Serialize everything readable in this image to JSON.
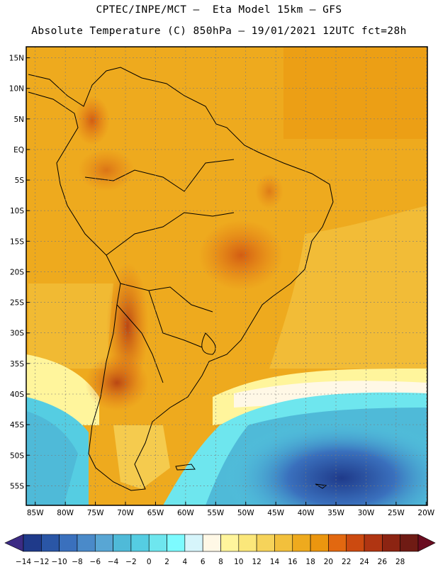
{
  "header": {
    "line1": "CPTEC/INPE/MCT –  Eta Model 15km – GFS",
    "line2": "Absolute Temperature (C) 850hPa – 19/01/2021 12UTC fct=28h"
  },
  "map": {
    "lat_labels": [
      "15N",
      "10N",
      "5N",
      "EQ",
      "5S",
      "10S",
      "15S",
      "20S",
      "25S",
      "30S",
      "35S",
      "40S",
      "45S",
      "50S",
      "55S"
    ],
    "lon_labels": [
      "85W",
      "80W",
      "75W",
      "70W",
      "65W",
      "60W",
      "55W",
      "50W",
      "45W",
      "40W",
      "35W",
      "30W",
      "25W",
      "20W"
    ],
    "region": "South America"
  },
  "colorbar": {
    "labels": [
      "-14",
      "-12",
      "-10",
      "-8",
      "-6",
      "-4",
      "-2",
      "0",
      "2",
      "4",
      "6",
      "8",
      "10",
      "12",
      "14",
      "16",
      "18",
      "20",
      "22",
      "24",
      "26",
      "28"
    ],
    "colors": [
      "#1f3a8a",
      "#2a56a6",
      "#3a70bd",
      "#4a8ac9",
      "#58a6d4",
      "#4fbad8",
      "#55cde2",
      "#6ee6ee",
      "#7dfbff",
      "#d6f5fb",
      "#fff8e6",
      "#fff59c",
      "#fbe77a",
      "#f6d35a",
      "#f2c03c",
      "#eeaa1e",
      "#eb960f",
      "#e26810",
      "#cc4a10",
      "#b03512",
      "#8c2412",
      "#6f1b14"
    ],
    "under_color": "#3c2b84",
    "over_color": "#6a0c20"
  }
}
